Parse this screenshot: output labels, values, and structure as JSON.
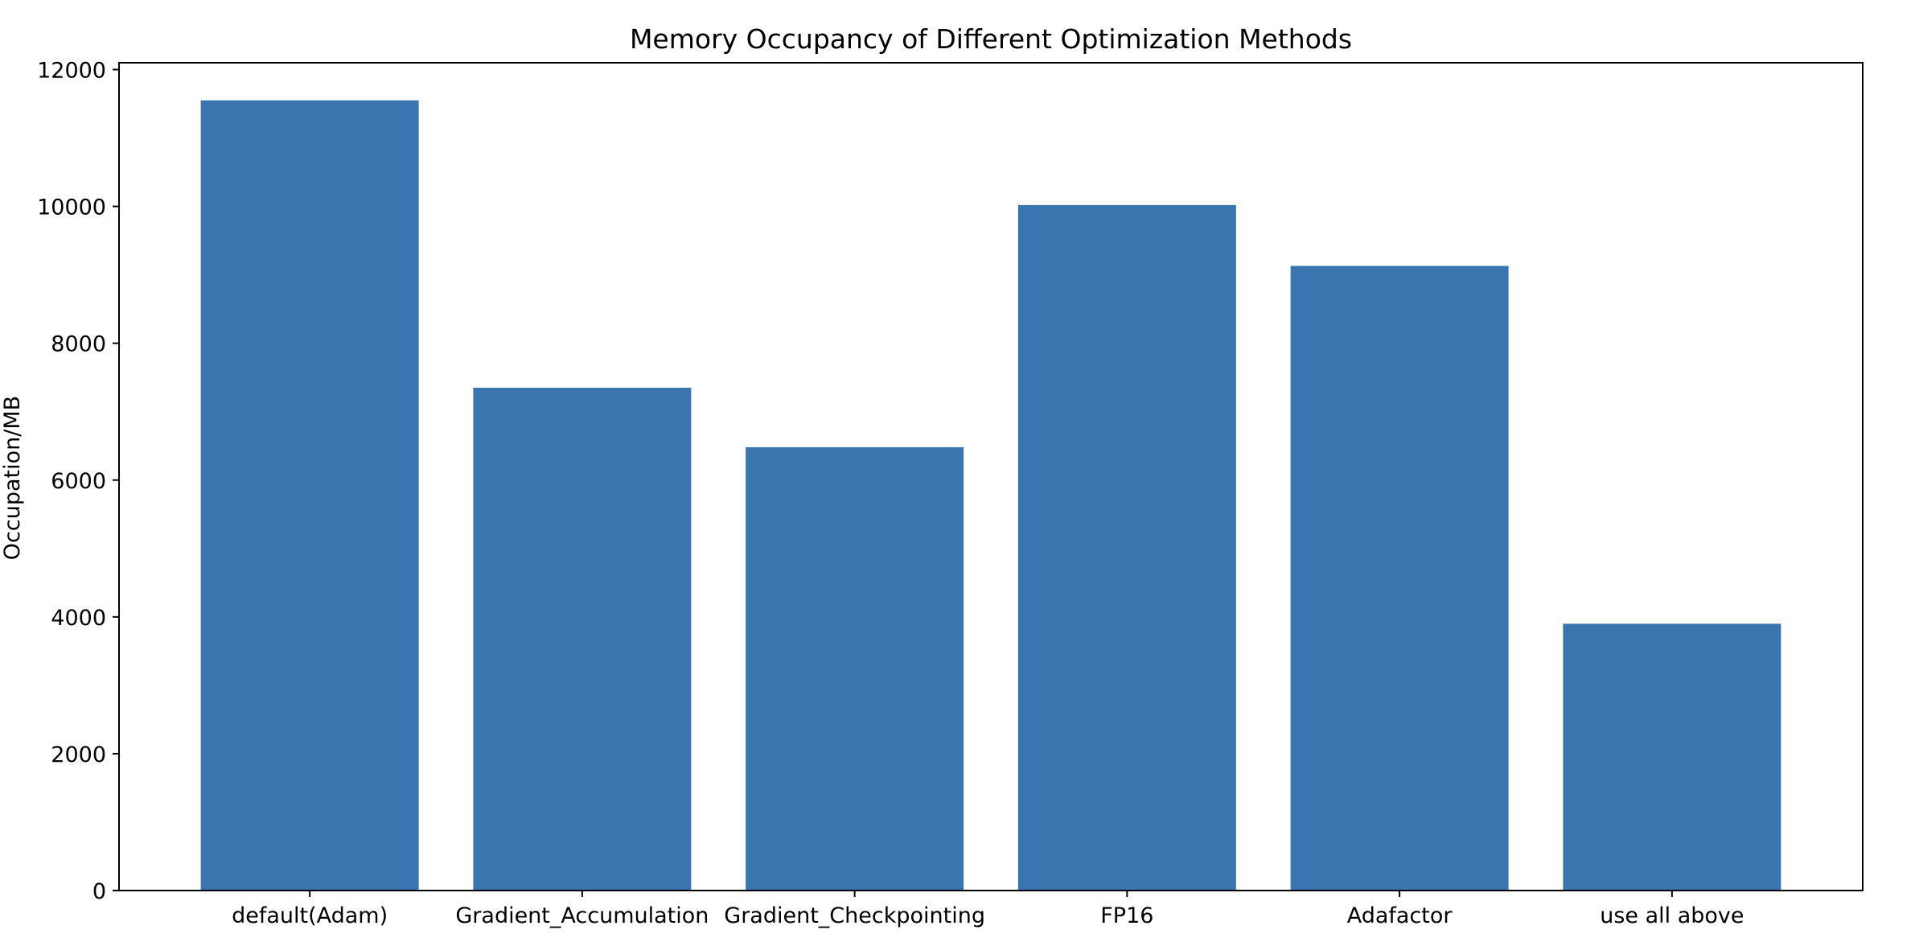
{
  "chart_data": {
    "type": "bar",
    "title": "Memory Occupancy of Different Optimization Methods",
    "xlabel": "",
    "ylabel": "Occupation/MB",
    "categories": [
      "default(Adam)",
      "Gradient_Accumulation",
      "Gradient_Checkpointing",
      "FP16",
      "Adafactor",
      "use all above"
    ],
    "values": [
      11550,
      7350,
      6480,
      10020,
      9130,
      3900
    ],
    "ylim": [
      0,
      12100
    ],
    "yticks": [
      0,
      2000,
      4000,
      6000,
      8000,
      10000,
      12000
    ],
    "ytick_labels": [
      "0",
      "2000",
      "4000",
      "6000",
      "8000",
      "10000",
      "12000"
    ],
    "grid": false,
    "legend": "none",
    "bar_color": "#3b75af"
  }
}
